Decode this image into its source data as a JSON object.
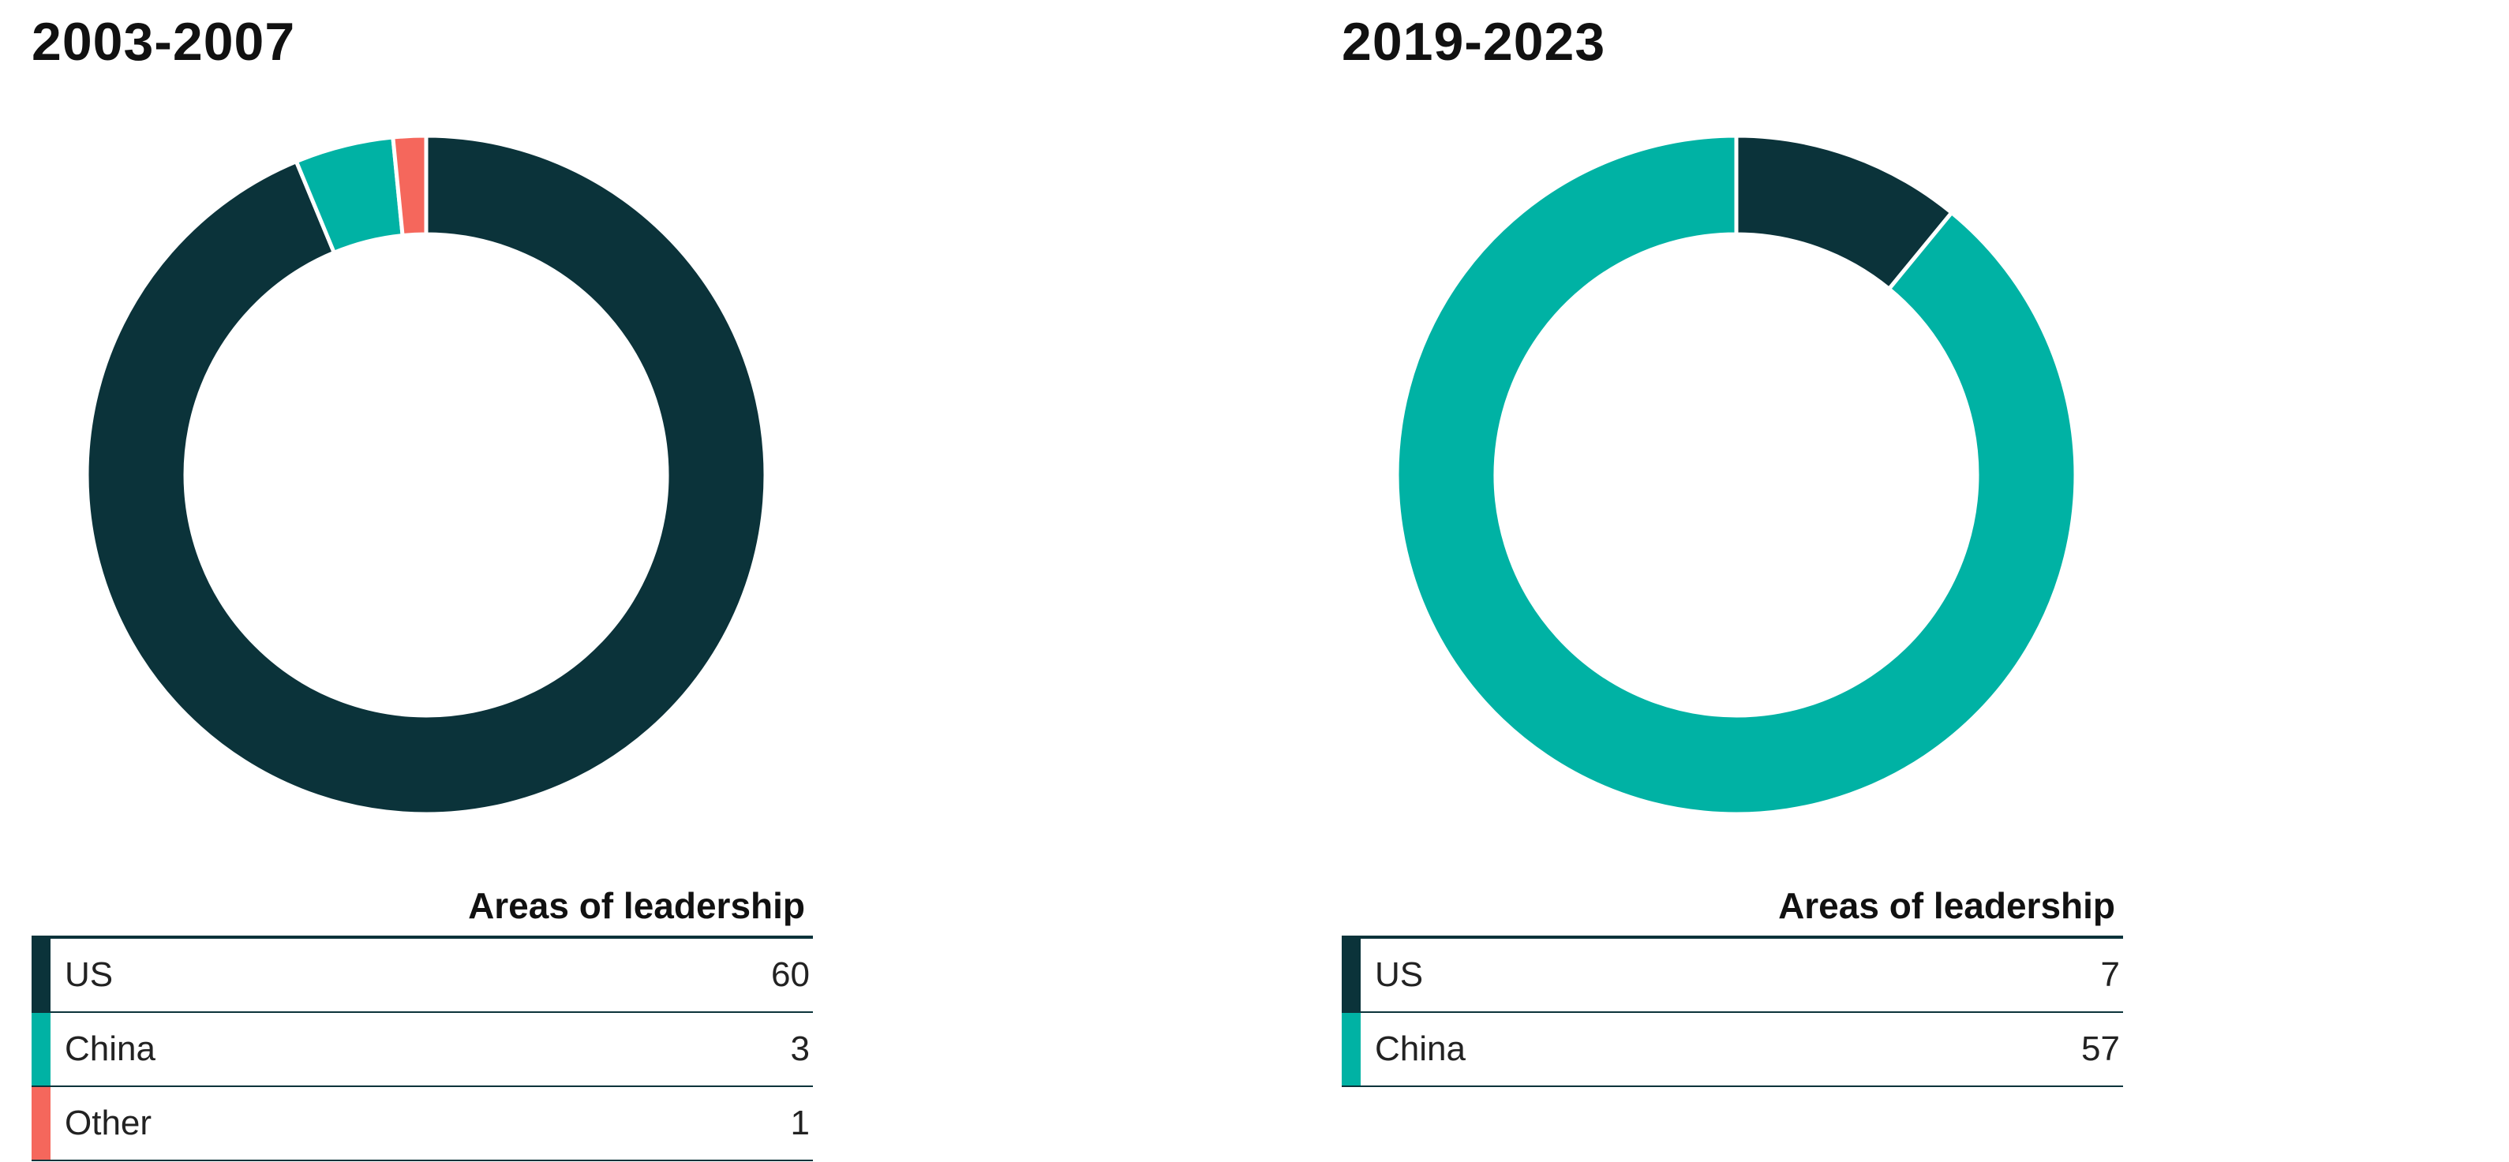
{
  "chart_data": [
    {
      "type": "pie",
      "style": "donut",
      "title": "2003-2007",
      "legend_header": "Areas of leadership",
      "legend_placement": "bottom",
      "categories": [
        "US",
        "China",
        "Other"
      ],
      "values": [
        60,
        3,
        1
      ],
      "value_labels": [
        "60",
        "3",
        "1"
      ],
      "colors": [
        "#0b333a",
        "#00b2a4",
        "#f5675c"
      ]
    },
    {
      "type": "pie",
      "style": "donut",
      "title": "2019-2023",
      "legend_header": "Areas of leadership",
      "legend_placement": "bottom",
      "categories": [
        "US",
        "China"
      ],
      "values": [
        7,
        57
      ],
      "value_labels": [
        "7",
        "57"
      ],
      "colors": [
        "#0b333a",
        "#00b2a4"
      ]
    }
  ]
}
